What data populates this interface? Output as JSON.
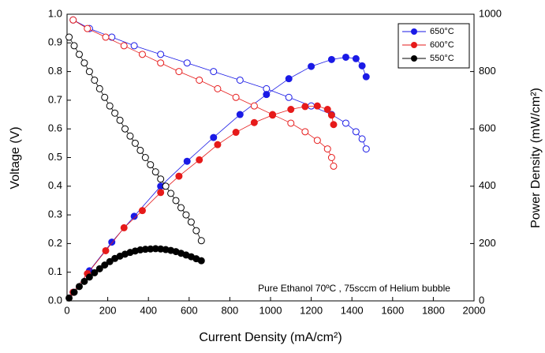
{
  "chart_data": {
    "type": "line",
    "xlabel": "Current Density (mA/cm²)",
    "ylabel": "Voltage (V)",
    "y2label": "Power Density (mW/cm²)",
    "annotation": "Pure Ethanol 70ºC , 75sccm of Helium  bubble",
    "xlim": [
      0,
      2000
    ],
    "xticks": [
      0,
      200,
      400,
      600,
      800,
      1000,
      1200,
      1400,
      1600,
      1800,
      2000
    ],
    "ylim": [
      0,
      1
    ],
    "yticks": [
      {
        "value": 0,
        "label": "0.0"
      },
      0.1,
      0.2,
      0.3,
      0.4,
      0.5,
      0.6,
      0.7,
      0.8,
      0.9,
      {
        "value": 1,
        "label": "1.0"
      }
    ],
    "y2lim": [
      0,
      1000
    ],
    "y2ticks": [
      0,
      200,
      400,
      600,
      800,
      1000
    ],
    "legend": "upper right",
    "series": [
      {
        "name": "650°C",
        "color": "#1a1ae6",
        "x": [
          30,
          110,
          220,
          330,
          460,
          590,
          720,
          850,
          980,
          1090,
          1200,
          1300,
          1370,
          1420,
          1450,
          1470
        ],
        "values": [
          0.98,
          0.95,
          0.92,
          0.89,
          0.86,
          0.83,
          0.8,
          0.77,
          0.74,
          0.71,
          0.68,
          0.65,
          0.62,
          0.59,
          0.565,
          0.53
        ],
        "power": [
          30,
          105,
          205,
          295,
          400,
          487,
          570,
          650,
          720,
          775,
          818,
          842,
          850,
          845,
          820,
          782
        ]
      },
      {
        "name": "600°C",
        "color": "#e61a1a",
        "x": [
          30,
          100,
          190,
          280,
          370,
          460,
          550,
          650,
          740,
          830,
          920,
          1010,
          1100,
          1170,
          1230,
          1280,
          1300,
          1310
        ],
        "values": [
          0.98,
          0.95,
          0.92,
          0.89,
          0.86,
          0.83,
          0.8,
          0.77,
          0.74,
          0.71,
          0.68,
          0.65,
          0.62,
          0.59,
          0.56,
          0.53,
          0.5,
          0.47
        ],
        "power": [
          30,
          95,
          175,
          255,
          315,
          378,
          435,
          492,
          545,
          588,
          622,
          648,
          668,
          678,
          680,
          668,
          648,
          615
        ]
      },
      {
        "name": "550°C",
        "color": "#000000",
        "x": [
          10,
          35,
          60,
          85,
          110,
          135,
          160,
          185,
          210,
          235,
          260,
          285,
          310,
          335,
          360,
          385,
          410,
          435,
          460,
          485,
          510,
          535,
          560,
          585,
          610,
          635,
          660
        ],
        "values": [
          0.92,
          0.89,
          0.86,
          0.83,
          0.8,
          0.77,
          0.74,
          0.71,
          0.68,
          0.655,
          0.63,
          0.6,
          0.575,
          0.55,
          0.525,
          0.5,
          0.475,
          0.45,
          0.425,
          0.4,
          0.375,
          0.35,
          0.325,
          0.3,
          0.275,
          0.245,
          0.21
        ],
        "power": [
          10,
          30,
          50,
          68,
          83,
          98,
          112,
          125,
          137,
          148,
          156,
          163,
          169,
          174,
          178,
          180,
          181,
          182,
          181,
          179,
          176,
          172,
          166,
          160,
          154,
          147,
          140
        ]
      }
    ]
  }
}
